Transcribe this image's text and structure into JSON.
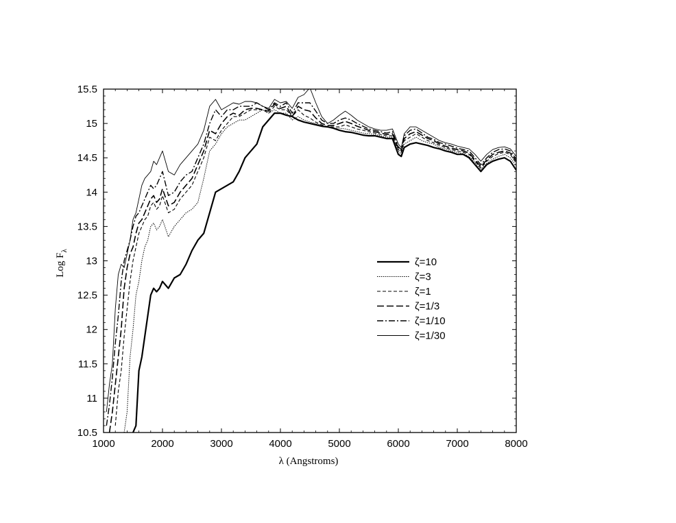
{
  "chart_data": {
    "type": "line",
    "title": "",
    "xlabel": "λ (Angstroms)",
    "ylabel_main": "Log F",
    "ylabel_sub": "λ",
    "xlim": [
      1000,
      8000
    ],
    "ylim": [
      10.5,
      15.5
    ],
    "xticks": [
      1000,
      2000,
      3000,
      4000,
      5000,
      6000,
      7000,
      8000
    ],
    "yticks": [
      10.5,
      11,
      11.5,
      12,
      12.5,
      13,
      13.5,
      14,
      14.5,
      15,
      15.5
    ],
    "xtick_labels": [
      "1000",
      "2000",
      "3000",
      "4000",
      "5000",
      "6000",
      "7000",
      "8000"
    ],
    "ytick_labels": [
      "10.5",
      "11",
      "11.5",
      "12",
      "12.5",
      "13",
      "13.5",
      "14",
      "14.5",
      "15",
      "15.5"
    ],
    "grid": false,
    "legend_position": "center-right",
    "series": [
      {
        "name": "ζ=10",
        "style": "solid-thick",
        "x": [
          1500,
          1550,
          1600,
          1650,
          1700,
          1750,
          1800,
          1850,
          1900,
          1950,
          2000,
          2100,
          2200,
          2300,
          2400,
          2500,
          2600,
          2700,
          2800,
          2900,
          3000,
          3100,
          3200,
          3300,
          3400,
          3500,
          3600,
          3700,
          3800,
          3900,
          4000,
          4100,
          4200,
          4300,
          4400,
          4500,
          4600,
          4700,
          4800,
          4900,
          5000,
          5100,
          5200,
          5300,
          5400,
          5500,
          5600,
          5700,
          5800,
          5900,
          6000,
          6050,
          6100,
          6200,
          6300,
          6400,
          6500,
          6600,
          6700,
          6800,
          6900,
          7000,
          7100,
          7200,
          7300,
          7400,
          7500,
          7600,
          7700,
          7800,
          7900,
          8000
        ],
        "y": [
          10.5,
          10.6,
          11.4,
          11.6,
          11.9,
          12.2,
          12.5,
          12.6,
          12.55,
          12.6,
          12.7,
          12.6,
          12.75,
          12.8,
          12.95,
          13.15,
          13.3,
          13.4,
          13.7,
          14.0,
          14.05,
          14.1,
          14.15,
          14.3,
          14.5,
          14.6,
          14.7,
          14.95,
          15.05,
          15.15,
          15.15,
          15.12,
          15.1,
          15.05,
          15.02,
          15.0,
          14.98,
          14.96,
          14.95,
          14.93,
          14.9,
          14.88,
          14.87,
          14.85,
          14.83,
          14.82,
          14.82,
          14.8,
          14.78,
          14.78,
          14.55,
          14.52,
          14.65,
          14.7,
          14.72,
          14.7,
          14.68,
          14.65,
          14.63,
          14.6,
          14.58,
          14.55,
          14.55,
          14.5,
          14.4,
          14.3,
          14.4,
          14.45,
          14.48,
          14.5,
          14.45,
          14.32
        ]
      },
      {
        "name": "ζ=3",
        "style": "dotted",
        "x": [
          1350,
          1400,
          1450,
          1500,
          1550,
          1600,
          1650,
          1700,
          1750,
          1800,
          1850,
          1900,
          1950,
          2000,
          2100,
          2200,
          2300,
          2400,
          2500,
          2600,
          2700,
          2750,
          2800,
          2900,
          3000,
          3100,
          3200,
          3300,
          3400,
          3500,
          3600,
          3700,
          3800,
          3900,
          4000,
          4100,
          4200,
          4300,
          4400,
          4500,
          4600,
          4700,
          4800,
          4900,
          5000,
          5100,
          5200,
          5300,
          5400,
          5500,
          5600,
          5700,
          5800,
          5900,
          6000,
          6050,
          6100,
          6200,
          6300,
          6400,
          6500,
          6600,
          6700,
          6800,
          6900,
          7000,
          7100,
          7200,
          7300,
          7400,
          7500,
          7600,
          7700,
          7800,
          7900,
          8000
        ],
        "y": [
          10.5,
          10.8,
          11.6,
          12.0,
          12.5,
          12.7,
          13.0,
          13.2,
          13.3,
          13.5,
          13.55,
          13.45,
          13.5,
          13.6,
          13.35,
          13.5,
          13.6,
          13.7,
          13.75,
          13.85,
          14.2,
          14.4,
          14.6,
          14.7,
          14.85,
          14.95,
          15.0,
          15.05,
          15.05,
          15.1,
          15.15,
          15.2,
          15.15,
          15.2,
          15.15,
          15.15,
          15.05,
          15.1,
          15.05,
          15.02,
          15.0,
          14.97,
          14.95,
          14.93,
          14.93,
          14.92,
          14.9,
          14.88,
          14.86,
          14.85,
          14.84,
          14.82,
          14.8,
          14.8,
          14.6,
          14.55,
          14.7,
          14.75,
          14.8,
          14.75,
          14.72,
          14.7,
          14.65,
          14.63,
          14.6,
          14.58,
          14.56,
          14.52,
          14.43,
          14.33,
          14.42,
          14.48,
          14.52,
          14.55,
          14.5,
          14.38
        ]
      },
      {
        "name": "ζ=1",
        "style": "dashed",
        "x": [
          1200,
          1250,
          1300,
          1350,
          1400,
          1450,
          1500,
          1550,
          1600,
          1650,
          1700,
          1750,
          1800,
          1850,
          1900,
          1950,
          2000,
          2100,
          2200,
          2300,
          2400,
          2500,
          2600,
          2700,
          2800,
          2900,
          3000,
          3100,
          3200,
          3300,
          3400,
          3500,
          3600,
          3700,
          3800,
          3900,
          4000,
          4100,
          4200,
          4300,
          4400,
          4500,
          4600,
          4700,
          4800,
          4900,
          5000,
          5100,
          5200,
          5300,
          5400,
          5500,
          5600,
          5700,
          5800,
          5900,
          6000,
          6050,
          6100,
          6200,
          6300,
          6400,
          6500,
          6600,
          6700,
          6800,
          6900,
          7000,
          7100,
          7200,
          7300,
          7400,
          7500,
          7600,
          7700,
          7800,
          7900,
          8000
        ],
        "y": [
          10.6,
          11.1,
          11.4,
          11.9,
          12.3,
          12.7,
          13.0,
          13.2,
          13.4,
          13.5,
          13.6,
          13.65,
          13.8,
          13.85,
          13.75,
          13.8,
          13.95,
          13.7,
          13.75,
          13.9,
          14.0,
          14.1,
          14.3,
          14.5,
          14.8,
          14.75,
          14.9,
          15.0,
          15.1,
          15.1,
          15.15,
          15.2,
          15.2,
          15.2,
          15.15,
          15.25,
          15.2,
          15.2,
          15.1,
          15.2,
          15.12,
          15.08,
          15.02,
          14.98,
          14.95,
          14.95,
          14.95,
          14.98,
          14.95,
          14.92,
          14.9,
          14.88,
          14.86,
          14.84,
          14.82,
          14.82,
          14.62,
          14.58,
          14.75,
          14.8,
          14.85,
          14.8,
          14.75,
          14.72,
          14.68,
          14.65,
          14.62,
          14.6,
          14.58,
          14.55,
          14.45,
          14.35,
          14.45,
          14.52,
          14.56,
          14.58,
          14.55,
          14.42
        ]
      },
      {
        "name": "ζ=1/3",
        "style": "long-dash",
        "x": [
          1100,
          1150,
          1200,
          1250,
          1300,
          1350,
          1400,
          1450,
          1500,
          1550,
          1600,
          1650,
          1700,
          1750,
          1800,
          1850,
          1900,
          1950,
          2000,
          2100,
          2200,
          2300,
          2400,
          2500,
          2600,
          2700,
          2800,
          2900,
          3000,
          3100,
          3200,
          3300,
          3400,
          3500,
          3600,
          3700,
          3800,
          3900,
          4000,
          4100,
          4200,
          4300,
          4400,
          4500,
          4600,
          4700,
          4800,
          4900,
          5000,
          5100,
          5200,
          5300,
          5400,
          5500,
          5600,
          5700,
          5800,
          5900,
          6000,
          6050,
          6100,
          6200,
          6300,
          6400,
          6500,
          6600,
          6700,
          6800,
          6900,
          7000,
          7100,
          7200,
          7300,
          7400,
          7500,
          7600,
          7700,
          7800,
          7900,
          8000
        ],
        "y": [
          10.5,
          10.8,
          11.2,
          11.6,
          12.0,
          12.6,
          12.9,
          13.1,
          13.2,
          13.4,
          13.55,
          13.6,
          13.7,
          13.8,
          13.9,
          13.95,
          13.85,
          13.9,
          14.05,
          13.8,
          13.85,
          14.0,
          14.1,
          14.2,
          14.4,
          14.6,
          14.9,
          14.85,
          15.0,
          15.1,
          15.15,
          15.12,
          15.2,
          15.22,
          15.22,
          15.2,
          15.18,
          15.28,
          15.22,
          15.25,
          15.1,
          15.25,
          15.2,
          15.18,
          15.08,
          15.0,
          14.97,
          14.97,
          15.0,
          15.03,
          15.0,
          14.96,
          14.93,
          14.9,
          14.88,
          14.86,
          14.84,
          14.85,
          14.64,
          14.6,
          14.78,
          14.85,
          14.88,
          14.83,
          14.78,
          14.75,
          14.7,
          14.67,
          14.64,
          14.62,
          14.6,
          14.57,
          14.47,
          14.37,
          14.47,
          14.55,
          14.58,
          14.6,
          14.57,
          14.45
        ]
      },
      {
        "name": "ζ=1/10",
        "style": "dash-dot",
        "x": [
          1050,
          1100,
          1150,
          1200,
          1250,
          1300,
          1350,
          1400,
          1450,
          1500,
          1550,
          1600,
          1650,
          1700,
          1750,
          1800,
          1850,
          1900,
          1950,
          2000,
          2100,
          2200,
          2300,
          2400,
          2500,
          2600,
          2700,
          2800,
          2900,
          3000,
          3100,
          3200,
          3300,
          3400,
          3500,
          3600,
          3700,
          3800,
          3900,
          4000,
          4100,
          4200,
          4300,
          4400,
          4500,
          4600,
          4700,
          4800,
          4900,
          5000,
          5100,
          5200,
          5300,
          5400,
          5500,
          5600,
          5700,
          5800,
          5900,
          6000,
          6050,
          6100,
          6200,
          6300,
          6400,
          6500,
          6600,
          6700,
          6800,
          6900,
          7000,
          7100,
          7200,
          7300,
          7400,
          7500,
          7600,
          7700,
          7800,
          7900,
          8000
        ],
        "y": [
          10.6,
          10.9,
          11.3,
          11.8,
          12.2,
          12.7,
          13.0,
          13.15,
          13.3,
          13.5,
          13.65,
          13.7,
          13.8,
          13.9,
          14.0,
          14.1,
          14.05,
          14.1,
          14.2,
          14.3,
          13.95,
          14.0,
          14.15,
          14.25,
          14.3,
          14.5,
          14.7,
          15.0,
          15.2,
          15.1,
          15.2,
          15.2,
          15.25,
          15.25,
          15.25,
          15.3,
          15.25,
          15.2,
          15.3,
          15.25,
          15.3,
          15.15,
          15.3,
          15.3,
          15.3,
          15.18,
          15.05,
          15.0,
          15.0,
          15.05,
          15.08,
          15.05,
          15.0,
          14.96,
          14.92,
          14.9,
          14.88,
          14.86,
          14.88,
          14.66,
          14.62,
          14.82,
          14.9,
          14.92,
          14.86,
          14.8,
          14.77,
          14.72,
          14.7,
          14.67,
          14.64,
          14.62,
          14.6,
          14.5,
          14.4,
          14.5,
          14.58,
          14.62,
          14.63,
          14.6,
          14.48
        ]
      },
      {
        "name": "ζ=1/30",
        "style": "solid-thin",
        "x": [
          1050,
          1100,
          1150,
          1200,
          1250,
          1300,
          1350,
          1400,
          1450,
          1500,
          1550,
          1600,
          1650,
          1700,
          1750,
          1800,
          1850,
          1900,
          1950,
          2000,
          2050,
          2100,
          2200,
          2300,
          2400,
          2500,
          2600,
          2700,
          2800,
          2900,
          3000,
          3100,
          3200,
          3300,
          3400,
          3500,
          3600,
          3700,
          3800,
          3900,
          4000,
          4100,
          4200,
          4300,
          4400,
          4500,
          4600,
          4700,
          4800,
          4900,
          5000,
          5100,
          5200,
          5300,
          5400,
          5500,
          5600,
          5700,
          5800,
          5900,
          6000,
          6050,
          6100,
          6200,
          6300,
          6400,
          6500,
          6600,
          6700,
          6800,
          6900,
          7000,
          7100,
          7200,
          7300,
          7400,
          7500,
          7600,
          7700,
          7800,
          7900,
          8000
        ],
        "y": [
          10.8,
          11.2,
          11.5,
          12.3,
          12.8,
          12.95,
          12.9,
          13.1,
          13.3,
          13.6,
          13.7,
          13.9,
          14.1,
          14.2,
          14.25,
          14.3,
          14.45,
          14.4,
          14.5,
          14.6,
          14.45,
          14.3,
          14.25,
          14.4,
          14.5,
          14.6,
          14.7,
          14.9,
          15.25,
          15.35,
          15.2,
          15.25,
          15.3,
          15.28,
          15.32,
          15.32,
          15.3,
          15.25,
          15.22,
          15.35,
          15.3,
          15.32,
          15.22,
          15.38,
          15.42,
          15.52,
          15.3,
          15.1,
          15.0,
          15.05,
          15.12,
          15.18,
          15.12,
          15.05,
          15.0,
          14.95,
          14.92,
          14.9,
          14.9,
          14.92,
          14.7,
          14.65,
          14.85,
          14.95,
          14.95,
          14.9,
          14.85,
          14.8,
          14.75,
          14.72,
          14.7,
          14.67,
          14.65,
          14.63,
          14.55,
          14.45,
          14.55,
          14.62,
          14.65,
          14.66,
          14.63,
          14.52
        ]
      }
    ]
  }
}
